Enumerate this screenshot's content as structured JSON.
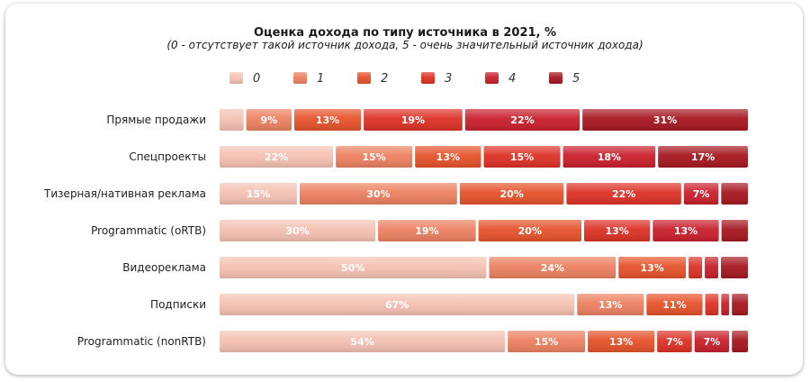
{
  "chart_data": {
    "type": "bar",
    "stacked": "percent",
    "orientation": "horizontal",
    "title": "Оценка дохода по типу источника в 2021, %",
    "subtitle": "(0 - отсутствует такой источник дохода, 5 - очень значительный источник дохода)",
    "legend_position": "top",
    "xlim": [
      0,
      100
    ],
    "grid": false,
    "categories": [
      "Прямые продажи",
      "Спецпроекты",
      "Тизерная/нативная реклама",
      "Programmatic (oRTB)",
      "Видеореклама",
      "Подписки",
      "Programmatic (nonRTB)"
    ],
    "series": [
      {
        "name": "0",
        "color": "#f4c1b2",
        "values": [
          5,
          22,
          15,
          30,
          50,
          67,
          54
        ],
        "labels": [
          "",
          "22%",
          "15%",
          "30%",
          "50%",
          "67%",
          "54%"
        ]
      },
      {
        "name": "1",
        "color": "#ec8060",
        "values": [
          9,
          15,
          30,
          19,
          24,
          13,
          15
        ],
        "labels": [
          "9%",
          "15%",
          "30%",
          "19%",
          "24%",
          "13%",
          "15%"
        ]
      },
      {
        "name": "2",
        "color": "#e5522a",
        "values": [
          13,
          13,
          20,
          20,
          13,
          11,
          13
        ],
        "labels": [
          "13%",
          "13%",
          "20%",
          "20%",
          "13%",
          "11%",
          "13%"
        ]
      },
      {
        "name": "3",
        "color": "#dc3125",
        "values": [
          19,
          15,
          22,
          13,
          3,
          3,
          7
        ],
        "labels": [
          "19%",
          "15%",
          "22%",
          "13%",
          "",
          "",
          "7%"
        ]
      },
      {
        "name": "4",
        "color": "#c81f2b",
        "values": [
          22,
          18,
          7,
          13,
          3,
          2,
          7
        ],
        "labels": [
          "22%",
          "18%",
          "7%",
          "13%",
          "",
          "",
          "7%"
        ]
      },
      {
        "name": "5",
        "color": "#a5171f",
        "values": [
          31,
          17,
          5,
          5,
          5,
          3,
          3
        ],
        "labels": [
          "31%",
          "17%",
          "",
          "",
          "",
          "",
          ""
        ]
      }
    ]
  }
}
